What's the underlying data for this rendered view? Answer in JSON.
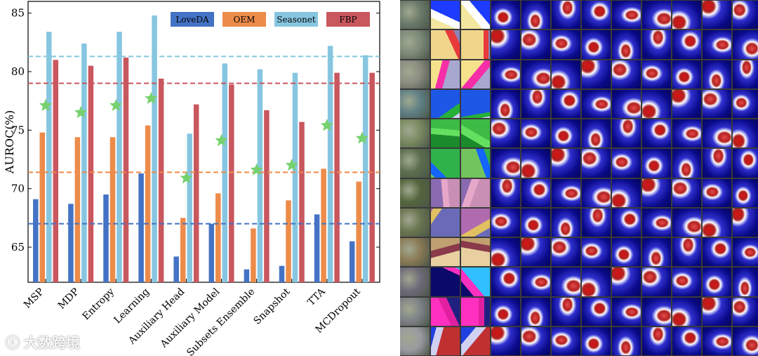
{
  "chart_data": {
    "type": "bar",
    "ylabel": "AUROC(%)",
    "xlabel": "",
    "ylim": [
      62,
      86
    ],
    "yticks": [
      65,
      70,
      75,
      80,
      85
    ],
    "categories": [
      "MSP",
      "MDP",
      "Entropy",
      "Learning",
      "Auxiliary Head",
      "Auxiliary Model",
      "Subsets Ensemble",
      "Snapshot",
      "TTA",
      "MCDropout"
    ],
    "series": [
      {
        "name": "LoveDA",
        "color": "#4472c4",
        "values": [
          69.1,
          68.7,
          69.5,
          71.3,
          64.2,
          67.0,
          63.1,
          63.4,
          67.8,
          65.5
        ]
      },
      {
        "name": "OEM",
        "color": "#ed8b4a",
        "values": [
          74.8,
          74.4,
          74.4,
          75.4,
          67.5,
          69.6,
          66.6,
          69.0,
          71.7,
          70.6
        ]
      },
      {
        "name": "Seasonet",
        "color": "#87c6e0",
        "values": [
          83.4,
          82.4,
          83.4,
          84.8,
          74.7,
          80.7,
          80.2,
          79.9,
          82.2,
          81.4
        ]
      },
      {
        "name": "FBP",
        "color": "#c9575e",
        "values": [
          81.0,
          80.5,
          81.2,
          79.4,
          77.2,
          78.9,
          76.7,
          75.7,
          79.9,
          79.9
        ]
      }
    ],
    "mean_markers": {
      "color": "#76d16e",
      "values": [
        77.1,
        76.5,
        77.1,
        77.7,
        70.9,
        74.1,
        71.6,
        72.0,
        75.4,
        74.3
      ]
    },
    "reference_lines": [
      {
        "series": "Seasonet",
        "value": 81.3,
        "color": "#87c6e0"
      },
      {
        "series": "FBP",
        "value": 79.0,
        "color": "#c9575e"
      },
      {
        "series": "OEM",
        "value": 71.4,
        "color": "#ed8b4a"
      },
      {
        "series": "LoveDA",
        "value": 67.0,
        "color": "#4472c4"
      }
    ],
    "legend_position": "top-right"
  },
  "watermark": {
    "logo_text": "ⓒ",
    "text": "大数跨境"
  }
}
